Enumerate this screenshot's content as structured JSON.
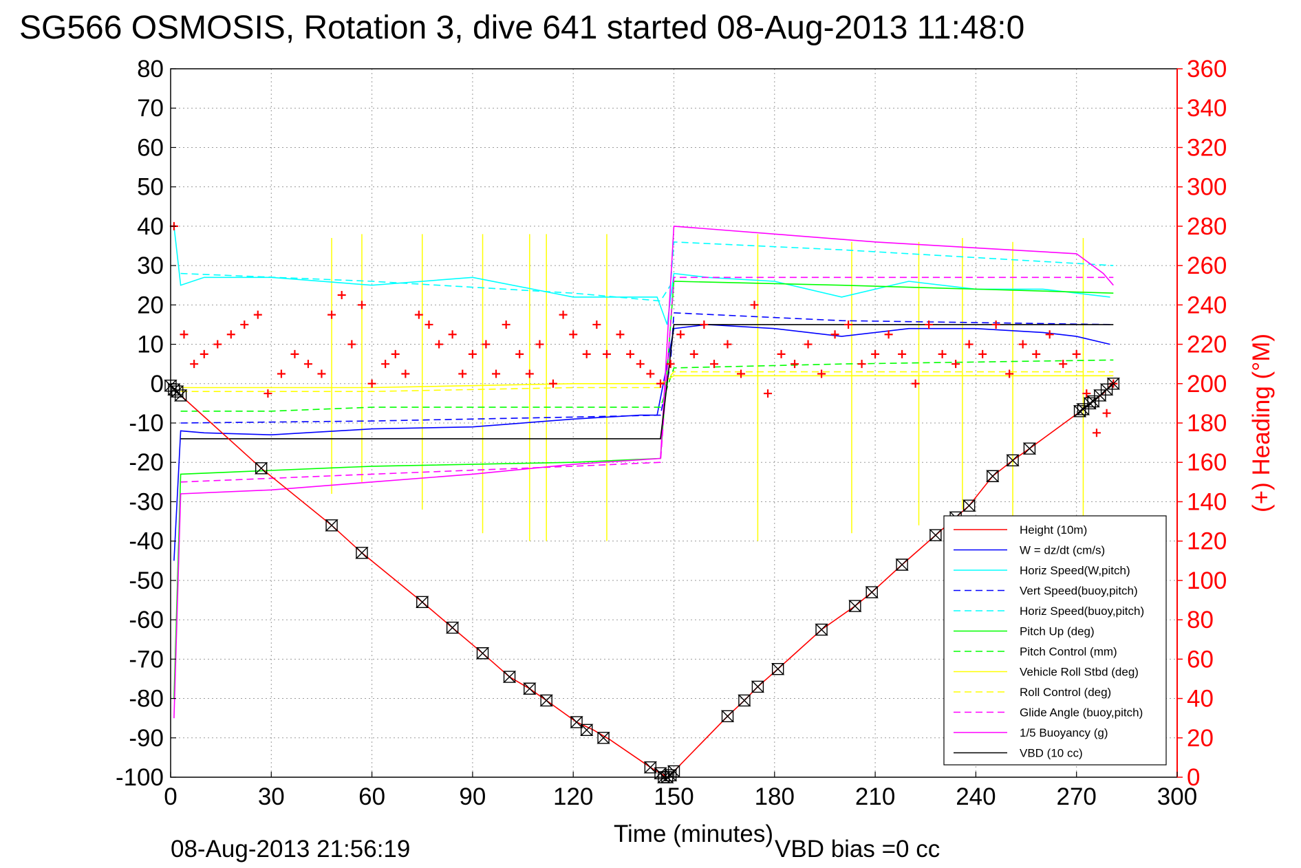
{
  "chart_data": {
    "type": "line",
    "title": "SG566 OSMOSIS, Rotation 3, dive 641 started 08-Aug-2013 11:48:0",
    "xlabel": "Time (minutes)",
    "ylabel": "",
    "ylabel_right": "(+) Heading (°M)",
    "xlim": [
      0,
      300
    ],
    "ylim": [
      -100,
      80
    ],
    "ylim_right": [
      0,
      360
    ],
    "x_ticks": [
      0,
      30,
      60,
      90,
      120,
      150,
      180,
      210,
      240,
      270,
      300
    ],
    "y_ticks": [
      80,
      70,
      60,
      50,
      40,
      30,
      20,
      10,
      0,
      -10,
      -20,
      -30,
      -40,
      -50,
      -60,
      -70,
      -80,
      -90,
      -100
    ],
    "y_ticks_right": [
      360,
      340,
      320,
      300,
      280,
      260,
      240,
      220,
      200,
      180,
      160,
      140,
      120,
      100,
      80,
      60,
      40,
      20,
      0
    ],
    "grid": true,
    "legend_position": "bottom-right",
    "footer_date": "08-Aug-2013 21:56:19",
    "footer_note": "VBD bias =0 cc",
    "colors": {
      "red": "#ff0000",
      "blue": "#0000ff",
      "cyan": "#00ffff",
      "green": "#00ff00",
      "yellow": "#ffff00",
      "magenta": "#ff00ff",
      "black": "#000000"
    },
    "series": [
      {
        "name": "Height (10m)",
        "color": "#ff0000",
        "dash": "solid",
        "x": [
          0,
          3,
          27,
          48,
          57,
          75,
          84,
          93,
          101,
          107,
          112,
          121,
          126,
          131,
          143,
          146,
          148,
          150,
          166,
          171,
          175,
          181,
          194,
          204,
          209,
          218,
          228,
          234,
          238,
          245,
          251,
          256,
          272,
          275,
          278,
          281
        ],
        "y": [
          -0.5,
          -3,
          -21.5,
          -36,
          -43,
          -55.5,
          -62,
          -68.5,
          -74.5,
          -77.5,
          -80.5,
          -86,
          -88,
          -90.5,
          -97.5,
          -99,
          -100,
          -98.5,
          -84.5,
          -80.5,
          -77,
          -72.5,
          -62.5,
          -56.5,
          -53,
          -46,
          -38.5,
          -34,
          -31,
          -23.5,
          -19.5,
          -16.5,
          -6.5,
          -4.5,
          -2.5,
          0.5
        ]
      },
      {
        "name": "W = dz/dt (cm/s)",
        "color": "#0000ff",
        "dash": "solid",
        "x": [
          1,
          3,
          10,
          30,
          60,
          90,
          120,
          140,
          145,
          148,
          150,
          160,
          180,
          200,
          220,
          240,
          260,
          270,
          280
        ],
        "y": [
          -45,
          -12,
          -12.5,
          -13,
          -11.5,
          -11,
          -9,
          -8,
          -8,
          5,
          14,
          15,
          14,
          12,
          14,
          14,
          13,
          12,
          10
        ]
      },
      {
        "name": "Horiz Speed(W,pitch)",
        "color": "#00ffff",
        "dash": "solid",
        "x": [
          1,
          3,
          10,
          30,
          60,
          90,
          120,
          140,
          145,
          148,
          150,
          160,
          180,
          200,
          220,
          240,
          260,
          270,
          280
        ],
        "y": [
          40,
          25,
          27,
          27,
          25,
          27,
          22,
          22,
          22,
          15,
          28,
          27,
          26,
          22,
          26,
          24,
          24,
          23,
          22
        ]
      },
      {
        "name": "Vert Speed(buoy,pitch)",
        "color": "#0000ff",
        "dash": "dashed",
        "x": [
          3,
          60,
          120,
          146,
          149,
          150,
          200,
          281
        ],
        "y": [
          -10,
          -9.5,
          -8.5,
          -8,
          5,
          18,
          16,
          15
        ]
      },
      {
        "name": "Horiz Speed(buoy,pitch)",
        "color": "#00ffff",
        "dash": "dashed",
        "x": [
          3,
          60,
          120,
          146,
          149,
          150,
          200,
          281
        ],
        "y": [
          28,
          26,
          23,
          21,
          25,
          36,
          34,
          30
        ]
      },
      {
        "name": "Pitch Up (deg)",
        "color": "#00ff00",
        "dash": "solid",
        "x": [
          1,
          3,
          60,
          120,
          146,
          150,
          200,
          281
        ],
        "y": [
          -80,
          -23,
          -21,
          -20,
          -19,
          26,
          25,
          23
        ]
      },
      {
        "name": "Pitch Control (mm)",
        "color": "#00ff00",
        "dash": "dashed",
        "x": [
          3,
          30,
          60,
          120,
          146,
          150,
          200,
          281
        ],
        "y": [
          -7,
          -7,
          -6,
          -6,
          -6,
          4,
          5,
          6
        ]
      },
      {
        "name": "Vehicle Roll Stbd (deg)",
        "color": "#ffff00",
        "dash": "solid",
        "x": [
          3,
          60,
          120,
          146,
          150,
          200,
          281
        ],
        "y": [
          -1,
          -1,
          0,
          0,
          2,
          2,
          2
        ]
      },
      {
        "name": "Roll Control (deg)",
        "color": "#ffff00",
        "dash": "dashed",
        "x": [
          3,
          60,
          120,
          146,
          150,
          200,
          281
        ],
        "y": [
          -2,
          -2,
          -1,
          -1,
          3,
          3,
          3
        ]
      },
      {
        "name": "Glide Angle (buoy,pitch)",
        "color": "#ff00ff",
        "dash": "dashed",
        "x": [
          3,
          60,
          120,
          146,
          150,
          200,
          281
        ],
        "y": [
          -25,
          -23,
          -21,
          -20,
          27,
          27,
          27
        ]
      },
      {
        "name": "1/5 Buoyancy (g)",
        "color": "#ff00ff",
        "dash": "solid",
        "x": [
          1,
          3,
          30,
          60,
          90,
          120,
          146,
          150,
          180,
          210,
          240,
          270,
          278,
          281
        ],
        "y": [
          -85,
          -28,
          -27,
          -25,
          -23,
          -20.5,
          -19,
          40,
          38,
          36,
          34.5,
          33,
          28,
          25
        ]
      },
      {
        "name": "VBD (10 cc)",
        "color": "#000000",
        "dash": "solid",
        "x": [
          3,
          146,
          148,
          150,
          281
        ],
        "y": [
          -14,
          -14,
          0,
          15,
          15
        ]
      }
    ],
    "heading_series": {
      "name": "(+) Heading",
      "color": "#ff0000",
      "axis": "right",
      "x": [
        1,
        4,
        7,
        10,
        14,
        18,
        22,
        26,
        29,
        33,
        37,
        41,
        45,
        48,
        51,
        54,
        57,
        60,
        64,
        67,
        70,
        74,
        77,
        80,
        84,
        87,
        90,
        94,
        97,
        100,
        104,
        107,
        110,
        114,
        117,
        120,
        124,
        127,
        130,
        134,
        137,
        140,
        143,
        146,
        149,
        152,
        156,
        159,
        162,
        166,
        170,
        174,
        178,
        182,
        186,
        190,
        194,
        198,
        202,
        206,
        210,
        214,
        218,
        222,
        226,
        230,
        234,
        238,
        242,
        246,
        250,
        254,
        258,
        262,
        266,
        270,
        273,
        276,
        279,
        281
      ],
      "y": [
        280,
        225,
        210,
        215,
        220,
        225,
        230,
        235,
        195,
        205,
        215,
        210,
        205,
        235,
        245,
        220,
        240,
        200,
        210,
        215,
        205,
        235,
        230,
        220,
        225,
        205,
        215,
        220,
        205,
        230,
        215,
        205,
        220,
        200,
        235,
        225,
        215,
        230,
        215,
        225,
        215,
        210,
        205,
        200,
        210,
        225,
        215,
        230,
        210,
        220,
        205,
        240,
        195,
        215,
        210,
        220,
        205,
        225,
        230,
        210,
        215,
        225,
        215,
        200,
        230,
        215,
        210,
        220,
        215,
        230,
        205,
        220,
        215,
        225,
        210,
        215,
        195,
        175,
        185,
        200
      ]
    },
    "vbd_markers": {
      "x": [
        0,
        1,
        2,
        3,
        27,
        48,
        57,
        75,
        84,
        93,
        101,
        107,
        112,
        121,
        124,
        129,
        143,
        146,
        147,
        148,
        149,
        150,
        166,
        171,
        175,
        181,
        194,
        204,
        209,
        218,
        228,
        234,
        238,
        245,
        251,
        256,
        271,
        272,
        274,
        275,
        277,
        279,
        281
      ],
      "y": [
        -0.5,
        -1.5,
        -2,
        -3,
        -21.5,
        -36,
        -43,
        -55.5,
        -62,
        -68.5,
        -74.5,
        -77.5,
        -80.5,
        -86,
        -88,
        -90,
        -97.5,
        -99,
        -100,
        -100,
        -99.5,
        -98.5,
        -84.5,
        -80.5,
        -77,
        -72.5,
        -62.5,
        -56.5,
        -53,
        -46,
        -38.5,
        -34,
        -31,
        -23.5,
        -19.5,
        -16.5,
        -7,
        -6.5,
        -5,
        -4.5,
        -3,
        -1.5,
        0
      ]
    },
    "roll_spikes": {
      "x": [
        48,
        57,
        75,
        93,
        107,
        112,
        130,
        175,
        203,
        223,
        236,
        251,
        272
      ],
      "y_min": [
        -28,
        -25,
        -32,
        -38,
        -40,
        -40,
        -40,
        -40,
        -38,
        -36,
        -32,
        -38,
        -34
      ],
      "y_max": [
        37,
        38,
        38,
        38,
        38,
        38,
        38,
        38,
        36,
        36,
        37,
        36,
        37
      ]
    }
  }
}
